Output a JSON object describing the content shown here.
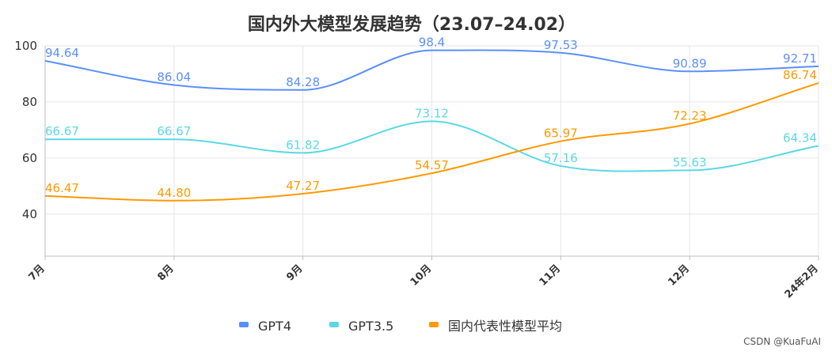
{
  "chart_data": {
    "type": "line",
    "title": "国内外大模型发展趋势（23.07–24.02）",
    "categories": [
      "7月",
      "8月",
      "9月",
      "10月",
      "11月",
      "12月",
      "24年2月"
    ],
    "ylim": [
      25,
      100
    ],
    "yticks": [
      40,
      60,
      80,
      100
    ],
    "grid": true,
    "legend_position": "bottom",
    "series": [
      {
        "name": "GPT4",
        "color": "#5B8FF9",
        "values": [
          94.64,
          86.04,
          84.28,
          98.4,
          97.53,
          90.89,
          92.71
        ],
        "labels": [
          "94.64",
          "86.04",
          "84.28",
          "98.4",
          "97.53",
          "90.89",
          "92.71"
        ]
      },
      {
        "name": "GPT3.5",
        "color": "#5AD8E6",
        "values": [
          66.67,
          66.67,
          61.82,
          73.12,
          57.16,
          55.63,
          64.34
        ],
        "labels": [
          "66.67",
          "66.67",
          "61.82",
          "73.12",
          "57.16",
          "55.63",
          "64.34"
        ]
      },
      {
        "name": "国内代表性模型平均",
        "color": "#FF9900",
        "values": [
          46.47,
          44.8,
          47.27,
          54.57,
          65.97,
          72.23,
          86.74
        ],
        "labels": [
          "46.47",
          "44.80",
          "47.27",
          "54.57",
          "65.97",
          "72.23",
          "86.74"
        ]
      }
    ]
  },
  "watermark": "CSDN @KuaFuAI"
}
